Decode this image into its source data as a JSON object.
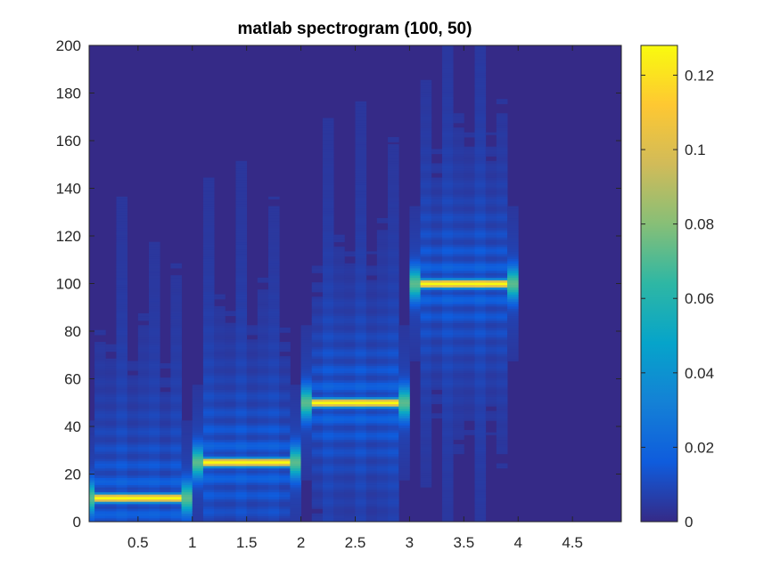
{
  "chart_data": {
    "type": "heatmap",
    "title": "matlab spectrogram (100, 50)",
    "xlabel": "",
    "ylabel": "",
    "xlim": [
      0.05,
      4.95
    ],
    "ylim": [
      0,
      200
    ],
    "xticks": [
      0.5,
      1,
      1.5,
      2,
      2.5,
      3,
      3.5,
      4,
      4.5
    ],
    "xtick_labels": [
      "0.5",
      "1",
      "1.5",
      "2",
      "2.5",
      "3",
      "3.5",
      "4",
      "4.5"
    ],
    "yticks": [
      0,
      20,
      40,
      60,
      80,
      100,
      120,
      140,
      160,
      180,
      200
    ],
    "ytick_labels": [
      "0",
      "20",
      "40",
      "60",
      "80",
      "100",
      "120",
      "140",
      "160",
      "180",
      "200"
    ],
    "colormap": "parula",
    "clim": [
      0,
      0.128
    ],
    "colorbar_ticks": [
      0,
      0.02,
      0.04,
      0.06,
      0.08,
      0.1,
      0.12
    ],
    "colorbar_tick_labels": [
      "0",
      "0.02",
      "0.04",
      "0.06",
      "0.08",
      "0.1",
      "0.12"
    ],
    "colorbar_location": "right",
    "segments": [
      {
        "t_start": 0.0,
        "t_end": 1.0,
        "frequency": 10,
        "peak_magnitude": 0.128
      },
      {
        "t_start": 1.0,
        "t_end": 2.0,
        "frequency": 25,
        "peak_magnitude": 0.128
      },
      {
        "t_start": 2.0,
        "t_end": 3.0,
        "frequency": 50,
        "peak_magnitude": 0.128
      },
      {
        "t_start": 3.0,
        "t_end": 4.0,
        "frequency": 100,
        "peak_magnitude": 0.128
      },
      {
        "t_start": 4.0,
        "t_end": 5.0,
        "frequency": null,
        "peak_magnitude": 0
      }
    ]
  }
}
